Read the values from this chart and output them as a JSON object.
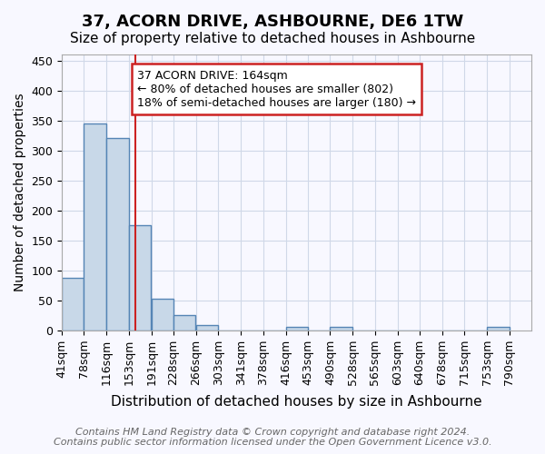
{
  "title": "37, ACORN DRIVE, ASHBOURNE, DE6 1TW",
  "subtitle": "Size of property relative to detached houses in Ashbourne",
  "xlabel": "Distribution of detached houses by size in Ashbourne",
  "ylabel": "Number of detached properties",
  "footer_line1": "Contains HM Land Registry data © Crown copyright and database right 2024.",
  "footer_line2": "Contains public sector information licensed under the Open Government Licence v3.0.",
  "bin_labels": [
    "41sqm",
    "78sqm",
    "116sqm",
    "153sqm",
    "191sqm",
    "228sqm",
    "266sqm",
    "303sqm",
    "341sqm",
    "378sqm",
    "416sqm",
    "453sqm",
    "490sqm",
    "528sqm",
    "565sqm",
    "603sqm",
    "640sqm",
    "678sqm",
    "715sqm",
    "753sqm",
    "790sqm"
  ],
  "bin_edges": [
    41,
    78,
    116,
    153,
    191,
    228,
    266,
    303,
    341,
    378,
    416,
    453,
    490,
    528,
    565,
    603,
    640,
    678,
    715,
    753,
    790
  ],
  "bar_heights": [
    88,
    345,
    320,
    175,
    52,
    25,
    8,
    0,
    0,
    0,
    5,
    0,
    5,
    0,
    0,
    0,
    0,
    0,
    0,
    5
  ],
  "bar_color": "#c8d8e8",
  "bar_edge_color": "#5585b5",
  "bar_linewidth": 1.0,
  "grid_color": "#d0d8e8",
  "background_color": "#f8f8ff",
  "vline_x": 164,
  "vline_color": "#cc2222",
  "annotation_text": "37 ACORN DRIVE: 164sqm\n← 80% of detached houses are smaller (802)\n18% of semi-detached houses are larger (180) →",
  "annotation_box_color": "#cc2222",
  "annotation_bg": "#ffffff",
  "ylim": [
    0,
    460
  ],
  "yticks": [
    0,
    50,
    100,
    150,
    200,
    250,
    300,
    350,
    400,
    450
  ],
  "title_fontsize": 13,
  "subtitle_fontsize": 11,
  "xlabel_fontsize": 11,
  "ylabel_fontsize": 10,
  "tick_fontsize": 9,
  "annotation_fontsize": 9,
  "footer_fontsize": 8
}
